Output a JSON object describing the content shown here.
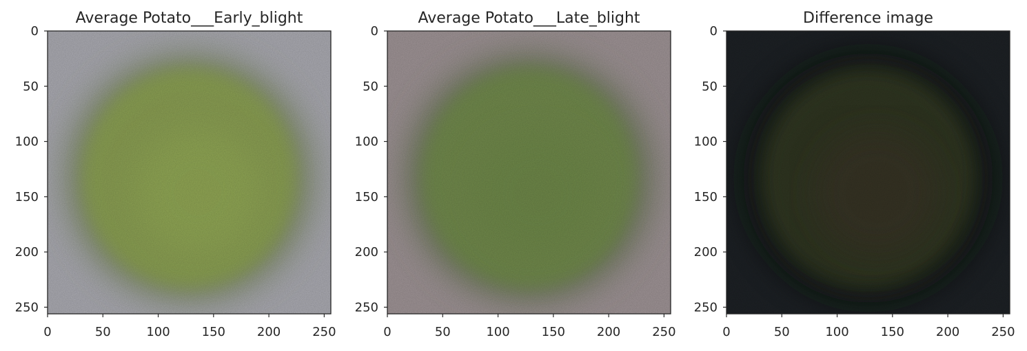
{
  "panels": [
    {
      "title": "Average Potato___Early_blight",
      "background": "#a9a9b0",
      "blob": "#8aa050",
      "blob_inner": "#93aa55",
      "shadow": "#6f7f52"
    },
    {
      "title": "Average Potato___Late_blight",
      "background": "#9d9294",
      "blob": "#708a4a",
      "blob_inner": "#6c8646",
      "shadow": "#5e6e4c"
    },
    {
      "title": "Difference image",
      "background": "#1c2024",
      "blob": "#323824",
      "blob_inner": "#3a3026",
      "shadow": "#101410"
    }
  ],
  "chart_data": [
    {
      "type": "image",
      "title": "Average Potato___Early_blight",
      "xlim": [
        0,
        256
      ],
      "ylim": [
        256,
        0
      ],
      "xticks": [
        0,
        50,
        100,
        150,
        200,
        250
      ],
      "yticks": [
        0,
        50,
        100,
        150,
        200,
        250
      ]
    },
    {
      "type": "image",
      "title": "Average Potato___Late_blight",
      "xlim": [
        0,
        256
      ],
      "ylim": [
        256,
        0
      ],
      "xticks": [
        0,
        50,
        100,
        150,
        200,
        250
      ],
      "yticks": [
        0,
        50,
        100,
        150,
        200,
        250
      ]
    },
    {
      "type": "image",
      "title": "Difference image",
      "xlim": [
        0,
        256
      ],
      "ylim": [
        256,
        0
      ],
      "xticks": [
        0,
        50,
        100,
        150,
        200,
        250
      ],
      "yticks": [
        0,
        50,
        100,
        150,
        200,
        250
      ]
    }
  ]
}
